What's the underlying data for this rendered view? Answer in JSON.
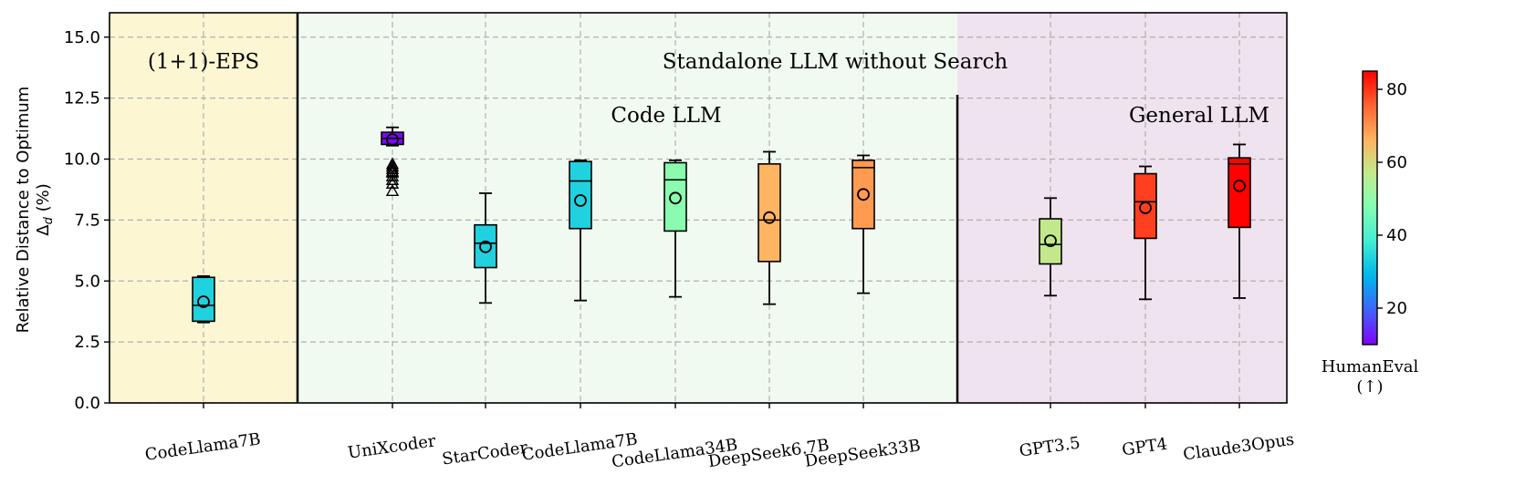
{
  "chart_data": {
    "type": "box",
    "ylabel": "Relative Distance to Optimum",
    "ylabel_sub": "Δ",
    "ylabel_sub_italic": "d",
    "ylabel_unit": " (%)",
    "ylim": [
      0,
      16
    ],
    "yticks": [
      "0.0",
      "2.5",
      "5.0",
      "7.5",
      "10.0",
      "12.5",
      "15.0"
    ],
    "ytick_values": [
      0,
      2.5,
      5,
      7.5,
      10,
      12.5,
      15
    ],
    "grid": true,
    "regions": [
      {
        "title": "(1+1)-EPS",
        "subtitle": "",
        "color": "#fcf7d2",
        "from": 0,
        "to": 1
      },
      {
        "title": "Standalone LLM without Search",
        "subtitle": "Code LLM",
        "color": "#f1faf0",
        "from": 1,
        "to": 7
      },
      {
        "title": "",
        "subtitle": "General LLM",
        "color": "#efe3f0",
        "from": 7,
        "to": 10
      }
    ],
    "categories": [
      "CodeLlama7B",
      "UniXcoder",
      "StarCoder",
      "CodeLlama7B",
      "CodeLlama34B",
      "DeepSeek6.7B",
      "DeepSeek33B",
      "GPT3.5",
      "GPT4",
      "Claude3Opus"
    ],
    "boxes": [
      {
        "whislo": 3.3,
        "q1": 3.35,
        "median": 4.0,
        "q3": 5.15,
        "whishi": 5.2,
        "mean": 4.15,
        "humaneval": 33.5,
        "fliers": []
      },
      {
        "whislo": 10.55,
        "q1": 10.6,
        "median": 10.85,
        "q3": 11.1,
        "whishi": 11.3,
        "mean": 10.8,
        "humaneval": 10.5,
        "fliers": [
          9.8,
          9.7,
          9.6,
          9.5,
          9.45,
          9.3,
          9.15,
          9.0,
          8.7
        ]
      },
      {
        "whislo": 4.1,
        "q1": 5.55,
        "median": 6.55,
        "q3": 7.3,
        "whishi": 8.6,
        "mean": 6.4,
        "humaneval": 33.6,
        "fliers": []
      },
      {
        "whislo": 4.2,
        "q1": 7.15,
        "median": 9.1,
        "q3": 9.9,
        "whishi": 9.95,
        "mean": 8.3,
        "humaneval": 33.5,
        "fliers": []
      },
      {
        "whislo": 4.35,
        "q1": 7.05,
        "median": 9.15,
        "q3": 9.85,
        "whishi": 9.95,
        "mean": 8.4,
        "humaneval": 48.8,
        "fliers": []
      },
      {
        "whislo": 4.05,
        "q1": 5.8,
        "median": 7.5,
        "q3": 9.8,
        "whishi": 10.3,
        "mean": 7.6,
        "humaneval": 65.9,
        "fliers": []
      },
      {
        "whislo": 4.5,
        "q1": 7.15,
        "median": 9.65,
        "q3": 9.95,
        "whishi": 10.15,
        "mean": 8.55,
        "humaneval": 69.2,
        "fliers": []
      },
      {
        "whislo": 4.4,
        "q1": 5.7,
        "median": 6.5,
        "q3": 7.55,
        "whishi": 8.4,
        "mean": 6.65,
        "humaneval": 57.3,
        "fliers": []
      },
      {
        "whislo": 4.25,
        "q1": 6.75,
        "median": 8.25,
        "q3": 9.4,
        "whishi": 9.7,
        "mean": 8.0,
        "humaneval": 79.0,
        "fliers": []
      },
      {
        "whislo": 4.3,
        "q1": 7.2,
        "median": 9.8,
        "q3": 10.05,
        "whishi": 10.6,
        "mean": 8.9,
        "humaneval": 84.9,
        "fliers": []
      }
    ],
    "colorbar": {
      "label": "HumanEval",
      "label2": "(↑)",
      "min": 10,
      "max": 85,
      "ticks": [
        "20",
        "40",
        "60",
        "80"
      ],
      "tick_values": [
        20,
        40,
        60,
        80
      ],
      "colormap": "rainbow"
    }
  }
}
